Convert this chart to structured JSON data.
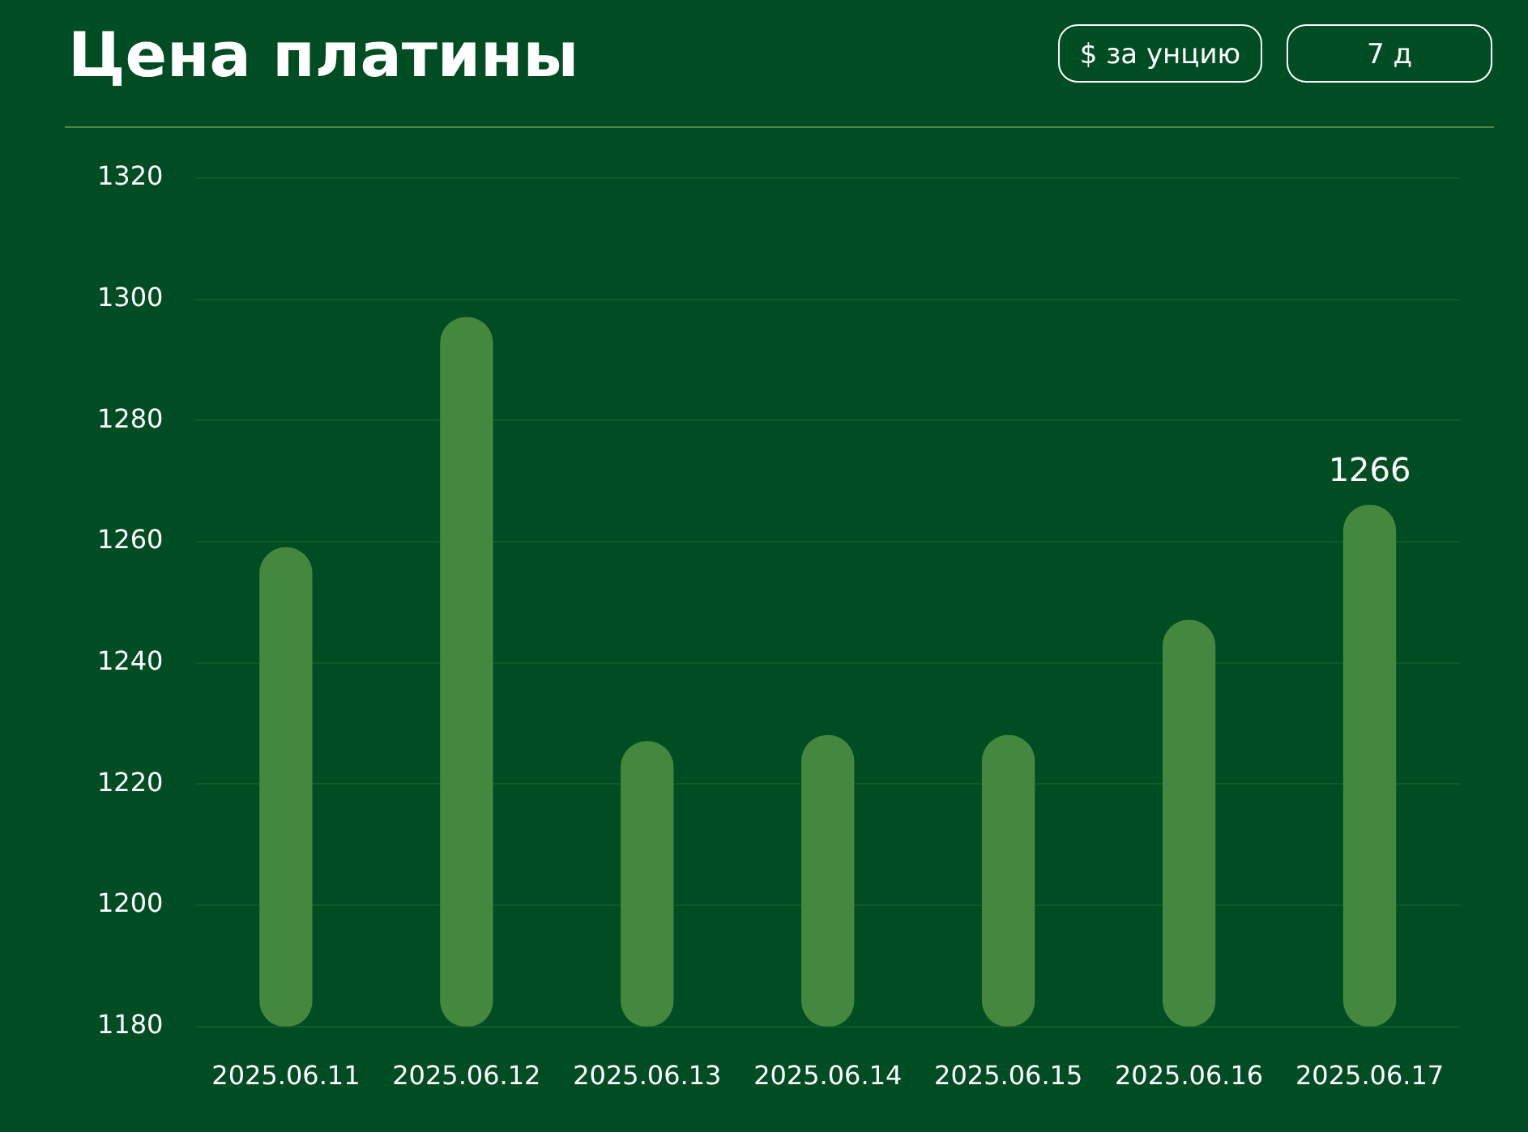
{
  "chart_data": {
    "type": "bar",
    "title": "Цена платины",
    "annotations": [
      "$ за унцию",
      "7 д"
    ],
    "categories": [
      "2025.06.11",
      "2025.06.12",
      "2025.06.13",
      "2025.06.14",
      "2025.06.15",
      "2025.06.16",
      "2025.06.17"
    ],
    "values": [
      1259,
      1297,
      1227,
      1228,
      1228,
      1247,
      1266
    ],
    "value_labels": [
      null,
      null,
      null,
      null,
      null,
      null,
      "1266"
    ],
    "color": "#448840",
    "ylim": [
      1180,
      1320
    ],
    "yticks": [
      1180,
      1200,
      1220,
      1240,
      1260,
      1280,
      1300,
      1320
    ],
    "grid": "y",
    "legend": false
  }
}
